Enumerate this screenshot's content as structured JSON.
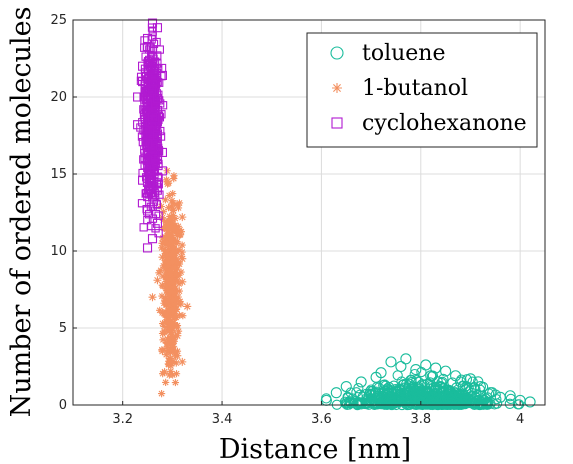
{
  "chart_data": {
    "type": "scatter",
    "xlabel": "Distance [nm]",
    "ylabel": "Number of ordered molecules",
    "xlim": [
      3.1,
      4.05
    ],
    "ylim": [
      0,
      25
    ],
    "xticks": [
      "3.2",
      "3.4",
      "3.6",
      "3.8",
      "4"
    ],
    "xtick_values": [
      3.2,
      3.4,
      3.6,
      3.8,
      4.0
    ],
    "yticks": [
      "0",
      "5",
      "10",
      "15",
      "20",
      "25"
    ],
    "ytick_values": [
      0,
      5,
      10,
      15,
      20,
      25
    ],
    "grid": true,
    "legend_position": "top-right",
    "series": [
      {
        "name": "toluene",
        "marker": "circle",
        "color": "#1abc9c",
        "points": [
          [
            3.61,
            0.3
          ],
          [
            3.63,
            0.8
          ],
          [
            3.65,
            1.2
          ],
          [
            3.66,
            0.2
          ],
          [
            3.68,
            1.5
          ],
          [
            3.7,
            0.6
          ],
          [
            3.71,
            1.8
          ],
          [
            3.72,
            2.1
          ],
          [
            3.73,
            0.4
          ],
          [
            3.74,
            2.8
          ],
          [
            3.75,
            1.0
          ],
          [
            3.76,
            2.5
          ],
          [
            3.77,
            3.0
          ],
          [
            3.78,
            1.6
          ],
          [
            3.79,
            2.3
          ],
          [
            3.8,
            0.9
          ],
          [
            3.81,
            2.6
          ],
          [
            3.82,
            1.9
          ],
          [
            3.83,
            2.4
          ],
          [
            3.84,
            1.2
          ],
          [
            3.85,
            2.2
          ],
          [
            3.86,
            0.7
          ],
          [
            3.87,
            1.9
          ],
          [
            3.88,
            1.5
          ],
          [
            3.89,
            1.0
          ],
          [
            3.9,
            1.7
          ],
          [
            3.91,
            0.5
          ],
          [
            3.92,
            1.2
          ],
          [
            3.94,
            0.8
          ],
          [
            3.96,
            0.5
          ],
          [
            3.98,
            0.6
          ],
          [
            4.0,
            0.3
          ],
          [
            4.02,
            0.2
          ],
          [
            3.74,
            0.1
          ],
          [
            3.8,
            0.2
          ],
          [
            3.86,
            0.1
          ],
          [
            3.92,
            0.2
          ],
          [
            3.69,
            0.1
          ],
          [
            3.78,
            0.4
          ],
          [
            3.84,
            0.3
          ]
        ]
      },
      {
        "name": "1-butanol",
        "marker": "star",
        "color": "#f39060",
        "points": [
          [
            3.28,
            3.5
          ],
          [
            3.29,
            4.0
          ],
          [
            3.3,
            5.2
          ],
          [
            3.31,
            3.2
          ],
          [
            3.32,
            2.8
          ],
          [
            3.28,
            6.0
          ],
          [
            3.3,
            7.3
          ],
          [
            3.31,
            8.5
          ],
          [
            3.29,
            9.0
          ],
          [
            3.3,
            10.2
          ],
          [
            3.31,
            11.0
          ],
          [
            3.32,
            12.2
          ],
          [
            3.3,
            13.1
          ],
          [
            3.29,
            14.5
          ],
          [
            3.28,
            10.5
          ],
          [
            3.27,
            8.1
          ],
          [
            3.33,
            6.4
          ],
          [
            3.26,
            7.0
          ],
          [
            3.32,
            9.5
          ],
          [
            3.3,
            11.8
          ],
          [
            3.31,
            4.5
          ],
          [
            3.29,
            5.8
          ],
          [
            3.3,
            6.8
          ],
          [
            3.32,
            8.0
          ],
          [
            3.28,
            9.6
          ]
        ]
      },
      {
        "name": "cyclohexanone",
        "marker": "square",
        "color": "#b11ad1",
        "points": [
          [
            3.26,
            24.8
          ],
          [
            3.27,
            24.5
          ],
          [
            3.25,
            23.8
          ],
          [
            3.26,
            22.6
          ],
          [
            3.24,
            21.0
          ],
          [
            3.23,
            20.0
          ],
          [
            3.25,
            19.5
          ],
          [
            3.26,
            18.7
          ],
          [
            3.27,
            17.5
          ],
          [
            3.26,
            16.8
          ],
          [
            3.25,
            15.9
          ],
          [
            3.28,
            15.2
          ],
          [
            3.27,
            14.1
          ],
          [
            3.26,
            13.5
          ],
          [
            3.25,
            12.6
          ],
          [
            3.27,
            11.8
          ],
          [
            3.26,
            10.8
          ],
          [
            3.25,
            10.2
          ],
          [
            3.24,
            22.0
          ],
          [
            3.28,
            21.4
          ],
          [
            3.23,
            18.2
          ],
          [
            3.28,
            16.4
          ],
          [
            3.24,
            14.6
          ],
          [
            3.25,
            17.0
          ],
          [
            3.27,
            19.9
          ]
        ]
      }
    ]
  }
}
